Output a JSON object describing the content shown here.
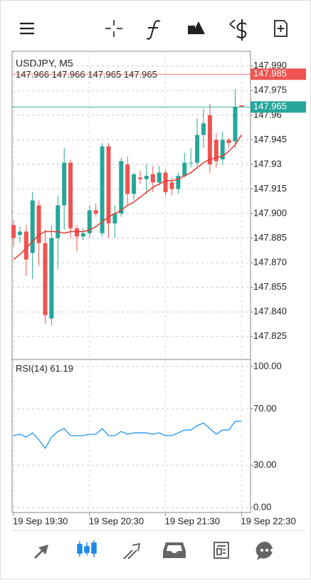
{
  "chart_data": [
    {
      "type": "candlestick",
      "title": "USDJPY, M5",
      "categories": [
        "19 Sep 19:30",
        null,
        null,
        null,
        null,
        null,
        null,
        null,
        null,
        null,
        null,
        null,
        "19 Sep 20:30",
        null,
        null,
        null,
        null,
        null,
        null,
        null,
        null,
        null,
        null,
        null,
        "19 Sep 21:30",
        null,
        null,
        null,
        null,
        null,
        null,
        null,
        null,
        null,
        null,
        null,
        "19 Sep 22:30"
      ],
      "open": [
        147.893,
        147.887,
        147.889,
        147.876,
        147.905,
        147.882,
        147.836,
        147.885,
        147.905,
        147.931,
        147.891,
        147.886,
        147.888,
        147.902,
        147.888,
        147.941,
        147.894,
        147.9,
        147.93,
        147.912,
        147.922,
        147.921,
        147.924,
        147.919,
        147.925,
        147.919,
        147.915,
        147.923,
        147.931,
        147.931,
        147.948,
        147.96,
        147.945,
        147.933,
        147.945,
        147.944,
        147.966
      ],
      "high": [
        147.896,
        147.892,
        147.893,
        147.913,
        147.908,
        147.89,
        147.893,
        147.911,
        147.94,
        147.933,
        147.893,
        147.891,
        147.905,
        147.906,
        147.943,
        147.943,
        147.905,
        147.934,
        147.935,
        147.925,
        147.926,
        147.93,
        147.929,
        147.929,
        147.927,
        147.922,
        147.925,
        147.937,
        147.94,
        147.958,
        147.964,
        147.967,
        147.949,
        147.95,
        147.946,
        147.976,
        147.966
      ],
      "low": [
        147.88,
        147.882,
        147.862,
        147.86,
        147.868,
        147.833,
        147.832,
        147.866,
        147.89,
        147.885,
        147.877,
        147.884,
        147.885,
        147.898,
        147.886,
        147.885,
        147.885,
        147.898,
        147.905,
        147.908,
        147.918,
        147.912,
        147.913,
        147.917,
        147.911,
        147.911,
        147.912,
        147.922,
        147.928,
        147.929,
        147.94,
        147.925,
        147.928,
        147.93,
        147.94,
        147.94,
        147.965
      ],
      "close": [
        147.885,
        147.889,
        147.872,
        147.908,
        147.882,
        147.838,
        147.885,
        147.905,
        147.931,
        147.891,
        147.886,
        147.888,
        147.902,
        147.9,
        147.941,
        147.894,
        147.9,
        147.932,
        147.912,
        147.924,
        147.921,
        147.923,
        147.919,
        147.925,
        147.913,
        147.915,
        147.923,
        147.931,
        147.931,
        147.948,
        147.955,
        147.93,
        147.932,
        147.945,
        147.943,
        147.965,
        147.965
      ],
      "ma": {
        "color": "#e53935",
        "values": [
          147.872,
          147.875,
          147.879,
          147.883,
          147.887,
          147.889,
          147.889,
          147.889,
          147.888,
          147.889,
          147.889,
          147.889,
          147.89,
          147.892,
          147.895,
          147.898,
          147.9,
          147.902,
          147.905,
          147.907,
          147.91,
          147.913,
          147.916,
          147.918,
          147.92,
          147.92,
          147.921,
          147.923,
          147.925,
          147.928,
          147.931,
          147.933,
          147.934,
          147.935,
          147.938,
          147.942,
          147.948
        ]
      },
      "up_color": "#26a69a",
      "down_color": "#ef5350",
      "price_lines": [
        {
          "value": 147.985,
          "color": "#ef5350"
        },
        {
          "value": 147.965,
          "color": "#26a69a"
        }
      ],
      "ylim": [
        147.811,
        147.999
      ],
      "yticks": [
        {
          "value": 147.99,
          "label": "147.990"
        },
        147.975,
        147.96,
        147.945,
        147.93,
        147.915,
        {
          "value": 147.9,
          "label": "147.900"
        },
        147.885,
        {
          "value": 147.87,
          "label": "147.870"
        },
        147.855,
        {
          "value": 147.84,
          "label": "147.840"
        },
        147.825
      ],
      "grid": true
    },
    {
      "type": "line",
      "title": "RSI(14)",
      "values": [
        51,
        52,
        50,
        53,
        48,
        42,
        50,
        54,
        56,
        51,
        51,
        51,
        52,
        52,
        56,
        51,
        51,
        54,
        52,
        53,
        53,
        53,
        52,
        53,
        51,
        51,
        53,
        55,
        55,
        58,
        60,
        56,
        52,
        55,
        55,
        61.19,
        61.19
      ],
      "color": "#2196f3",
      "ylim": [
        -3.5,
        105
      ],
      "yticks": [
        {
          "value": 100,
          "label": "100.00"
        },
        {
          "value": 70,
          "label": "70.00"
        },
        {
          "value": 30,
          "label": "30.00"
        },
        {
          "value": 0,
          "label": "0.00"
        }
      ],
      "grid": true
    }
  ]
}
